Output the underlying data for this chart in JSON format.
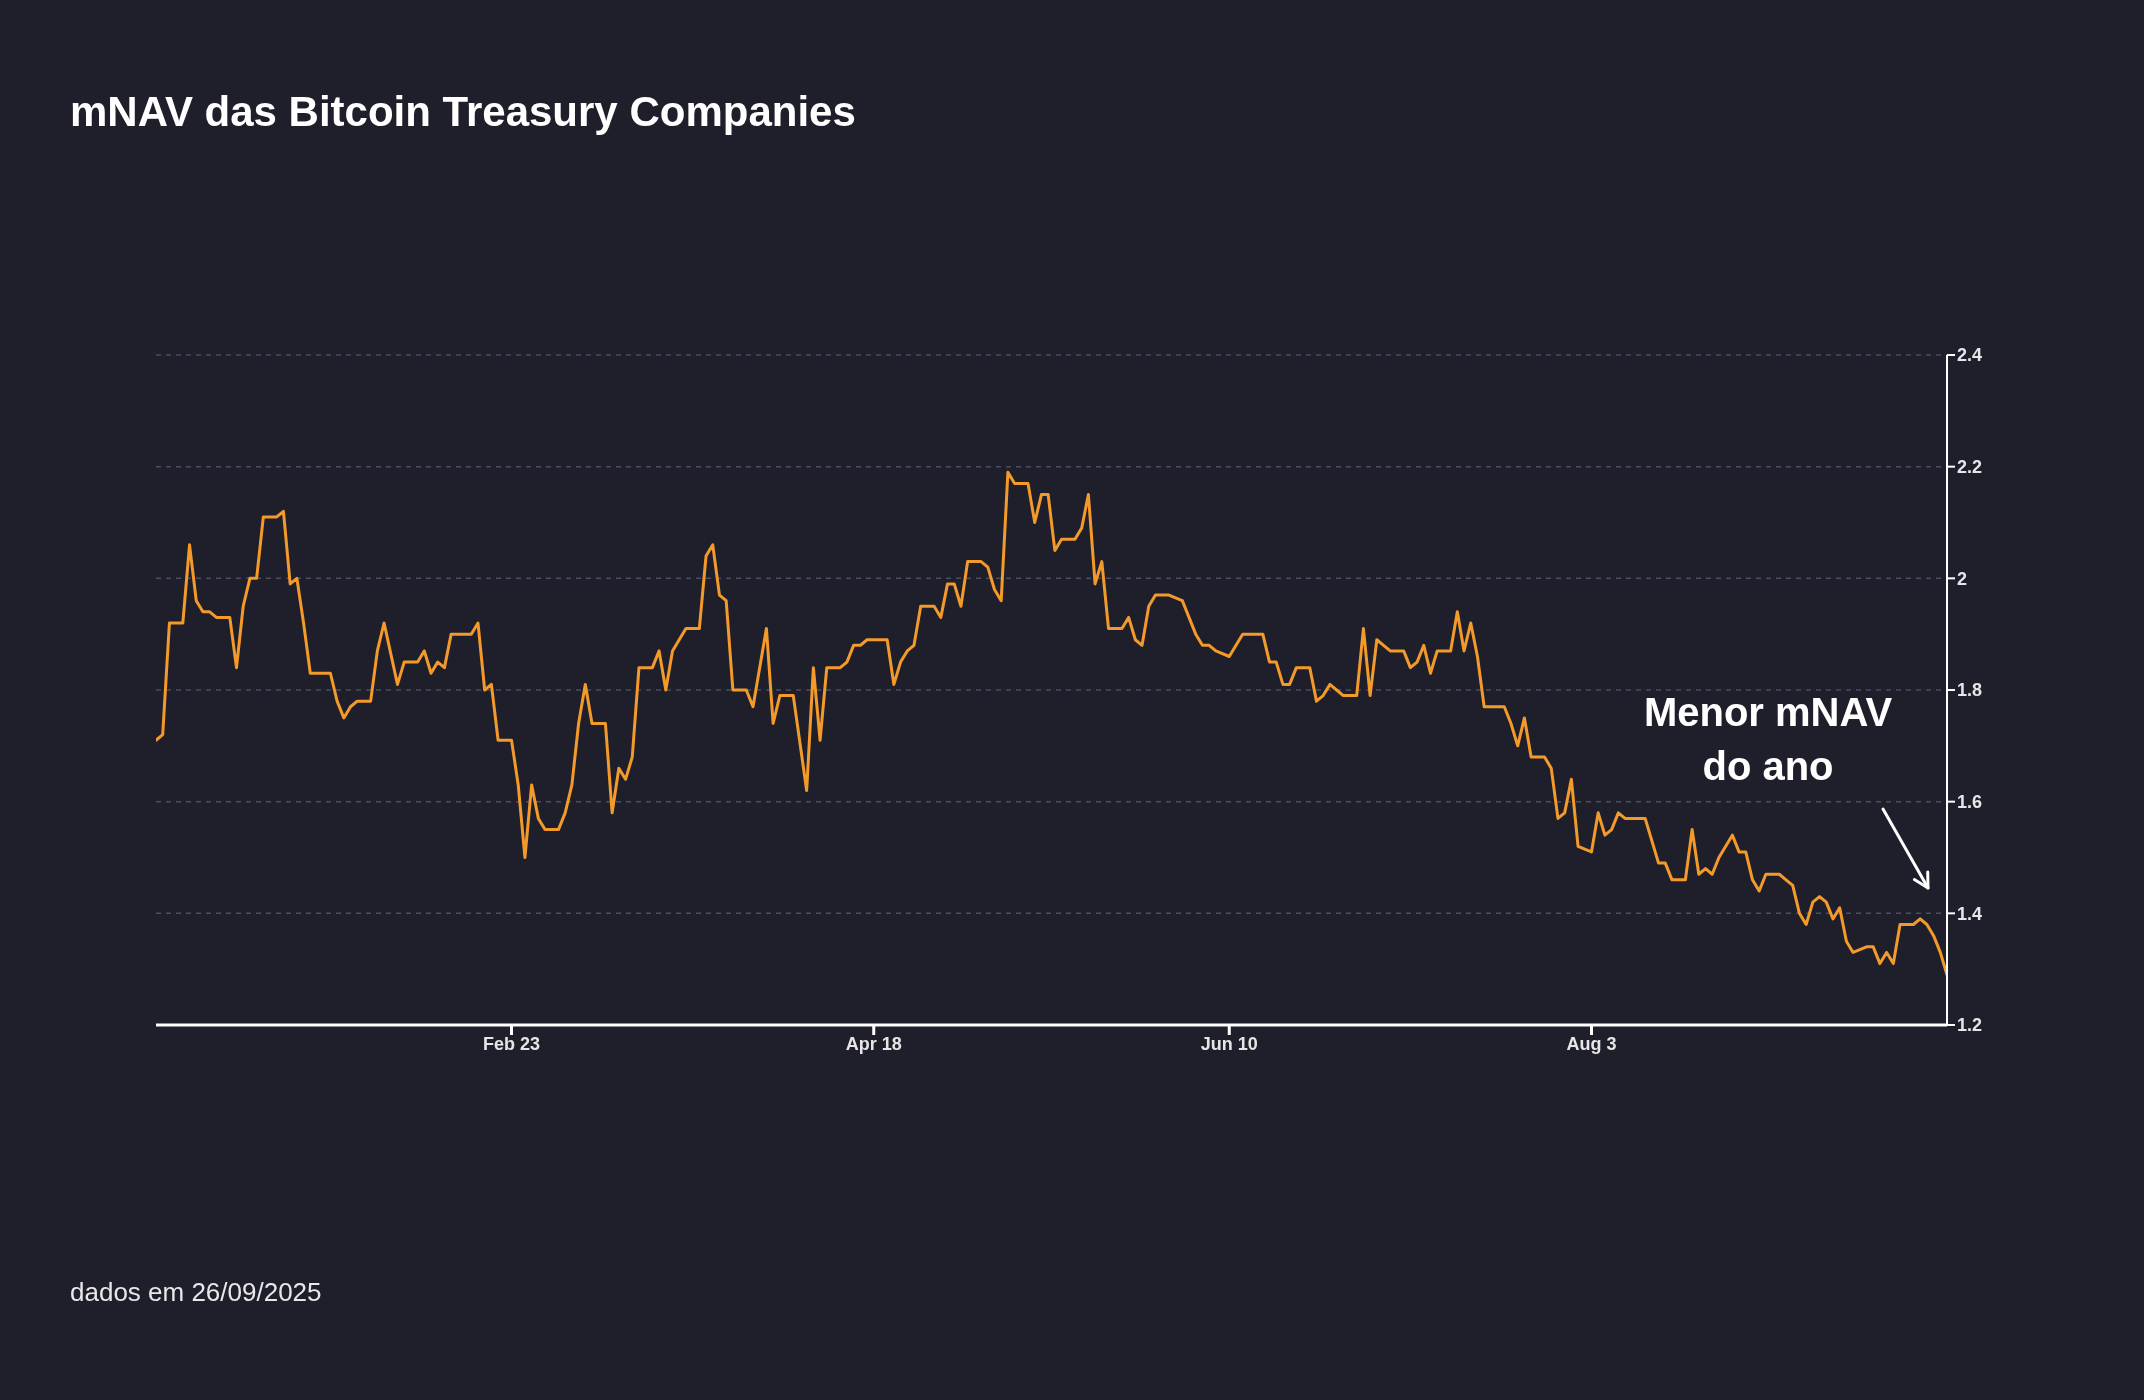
{
  "chart_data": {
    "type": "line",
    "title": "mNAV das Bitcoin Treasury Companies",
    "x": [
      "--01-01",
      "--01-02",
      "--01-03",
      "--01-05",
      "--01-06",
      "--01-07",
      "--01-08",
      "--01-09",
      "--01-10",
      "--01-12",
      "--01-13",
      "--01-14",
      "--01-15",
      "--01-16",
      "--01-17",
      "--01-19",
      "--01-20",
      "--01-21",
      "--01-22",
      "--01-23",
      "--01-24",
      "--01-27",
      "--01-28",
      "--01-29",
      "--01-30",
      "--01-31",
      "--02-02",
      "--02-03",
      "--02-04",
      "--02-06",
      "--02-07",
      "--02-09",
      "--02-10",
      "--02-11",
      "--02-12",
      "--02-13",
      "--02-14",
      "--02-16",
      "--02-17",
      "--02-18",
      "--02-19",
      "--02-20",
      "--02-21",
      "--02-23",
      "--02-24",
      "--02-25",
      "--02-26",
      "--02-27",
      "--02-28",
      "--03-02",
      "--03-03",
      "--03-04",
      "--03-05",
      "--03-06",
      "--03-07",
      "--03-09",
      "--03-10",
      "--03-11",
      "--03-12",
      "--03-13",
      "--03-14",
      "--03-16",
      "--03-17",
      "--03-18",
      "--03-19",
      "--03-21",
      "--03-23",
      "--03-24",
      "--03-25",
      "--03-26",
      "--03-27",
      "--03-28",
      "--03-30",
      "--03-31",
      "--04-02",
      "--04-03",
      "--04-04",
      "--04-06",
      "--04-08",
      "--04-09",
      "--04-10",
      "--04-11",
      "--04-13",
      "--04-14",
      "--04-15",
      "--04-16",
      "--04-17",
      "--04-20",
      "--04-21",
      "--04-22",
      "--04-23",
      "--04-24",
      "--04-25",
      "--04-27",
      "--04-28",
      "--04-29",
      "--04-30",
      "--05-01",
      "--05-02",
      "--05-04",
      "--05-05",
      "--05-06",
      "--05-07",
      "--05-08",
      "--05-09",
      "--05-11",
      "--05-12",
      "--05-13",
      "--05-14",
      "--05-15",
      "--05-16",
      "--05-18",
      "--05-19",
      "--05-20",
      "--05-21",
      "--05-22",
      "--05-23",
      "--05-25",
      "--05-26",
      "--05-27",
      "--05-28",
      "--05-29",
      "--05-30",
      "--06-01",
      "--06-03",
      "--06-04",
      "--06-05",
      "--06-06",
      "--06-07",
      "--06-08",
      "--06-10",
      "--06-12",
      "--06-15",
      "--06-16",
      "--06-17",
      "--06-18",
      "--06-19",
      "--06-20",
      "--06-21",
      "--06-22",
      "--06-23",
      "--06-24",
      "--06-25",
      "--06-26",
      "--06-27",
      "--06-29",
      "--06-30",
      "--07-01",
      "--07-02",
      "--07-03",
      "--07-04",
      "--07-06",
      "--07-07",
      "--07-08",
      "--07-09",
      "--07-10",
      "--07-11",
      "--07-13",
      "--07-14",
      "--07-15",
      "--07-16",
      "--07-17",
      "--07-18",
      "--07-20",
      "--07-21",
      "--07-22",
      "--07-23",
      "--07-24",
      "--07-25",
      "--07-27",
      "--07-28",
      "--07-29",
      "--07-30",
      "--07-31",
      "--08-01",
      "--08-03",
      "--08-04",
      "--08-05",
      "--08-06",
      "--08-07",
      "--08-08",
      "--08-09",
      "--08-11",
      "--08-13",
      "--08-14",
      "--08-15",
      "--08-17",
      "--08-18",
      "--08-19",
      "--08-20",
      "--08-21",
      "--08-22",
      "--08-24",
      "--08-25",
      "--08-26",
      "--08-27",
      "--08-28",
      "--08-29",
      "--08-30",
      "--08-31",
      "--09-01",
      "--09-02",
      "--09-03",
      "--09-04",
      "--09-05",
      "--09-06",
      "--09-07",
      "--09-08",
      "--09-09",
      "--09-10",
      "--09-11",
      "--09-13",
      "--09-14",
      "--09-15",
      "--09-16",
      "--09-17",
      "--09-18",
      "--09-20",
      "--09-21",
      "--09-22",
      "--09-23",
      "--09-24",
      "--09-25"
    ],
    "values": [
      1.71,
      1.72,
      1.92,
      1.92,
      2.06,
      1.96,
      1.94,
      1.94,
      1.93,
      1.93,
      1.84,
      1.95,
      2.0,
      2.0,
      2.11,
      2.11,
      2.12,
      1.99,
      2.0,
      1.92,
      1.83,
      1.83,
      1.78,
      1.75,
      1.77,
      1.78,
      1.78,
      1.87,
      1.92,
      1.81,
      1.85,
      1.85,
      1.87,
      1.83,
      1.85,
      1.84,
      1.9,
      1.9,
      1.9,
      1.92,
      1.8,
      1.81,
      1.71,
      1.71,
      1.63,
      1.5,
      1.63,
      1.57,
      1.55,
      1.55,
      1.58,
      1.63,
      1.74,
      1.81,
      1.74,
      1.74,
      1.58,
      1.66,
      1.64,
      1.68,
      1.84,
      1.84,
      1.87,
      1.8,
      1.87,
      1.91,
      1.91,
      2.04,
      2.06,
      1.97,
      1.96,
      1.8,
      1.8,
      1.77,
      1.91,
      1.74,
      1.79,
      1.79,
      1.62,
      1.84,
      1.71,
      1.84,
      1.84,
      1.85,
      1.88,
      1.88,
      1.89,
      1.89,
      1.81,
      1.85,
      1.87,
      1.88,
      1.95,
      1.95,
      1.93,
      1.99,
      1.99,
      1.95,
      2.03,
      2.03,
      2.02,
      1.98,
      1.96,
      2.19,
      2.17,
      2.17,
      2.1,
      2.15,
      2.15,
      2.05,
      2.07,
      2.07,
      2.09,
      2.15,
      1.99,
      2.03,
      1.91,
      1.91,
      1.93,
      1.89,
      1.88,
      1.95,
      1.97,
      1.97,
      1.96,
      1.93,
      1.9,
      1.88,
      1.88,
      1.87,
      1.86,
      1.9,
      1.9,
      1.85,
      1.85,
      1.81,
      1.81,
      1.84,
      1.84,
      1.84,
      1.78,
      1.79,
      1.81,
      1.8,
      1.79,
      1.79,
      1.91,
      1.79,
      1.89,
      1.88,
      1.87,
      1.87,
      1.84,
      1.85,
      1.88,
      1.83,
      1.87,
      1.87,
      1.94,
      1.87,
      1.92,
      1.86,
      1.77,
      1.77,
      1.77,
      1.74,
      1.7,
      1.75,
      1.68,
      1.68,
      1.66,
      1.57,
      1.58,
      1.64,
      1.52,
      1.51,
      1.58,
      1.54,
      1.55,
      1.58,
      1.57,
      1.57,
      1.57,
      1.49,
      1.49,
      1.46,
      1.46,
      1.55,
      1.47,
      1.48,
      1.47,
      1.5,
      1.54,
      1.51,
      1.51,
      1.46,
      1.44,
      1.47,
      1.47,
      1.47,
      1.46,
      1.45,
      1.4,
      1.38,
      1.42,
      1.43,
      1.42,
      1.39,
      1.41,
      1.35,
      1.33,
      1.34,
      1.34,
      1.31,
      1.33,
      1.31,
      1.38,
      1.38,
      1.39,
      1.38,
      1.36,
      1.33,
      1.29
    ],
    "color": "#f39a2b",
    "xlim": [
      "--01-01",
      "--09-25"
    ],
    "xticks": [
      {
        "value": "--02-23",
        "label": "Feb 23"
      },
      {
        "value": "--04-18",
        "label": "Apr 18"
      },
      {
        "value": "--06-10",
        "label": "Jun 10"
      },
      {
        "value": "--08-03",
        "label": "Aug 3"
      }
    ],
    "ylim": [
      1.2,
      2.4
    ],
    "yticks": [
      1.2,
      1.4,
      1.6,
      1.8,
      2,
      2.2,
      2.4
    ],
    "grid": "y",
    "annotations": [
      "Menor mNAV\ndo ano",
      "dados em 26/09/2025"
    ]
  }
}
